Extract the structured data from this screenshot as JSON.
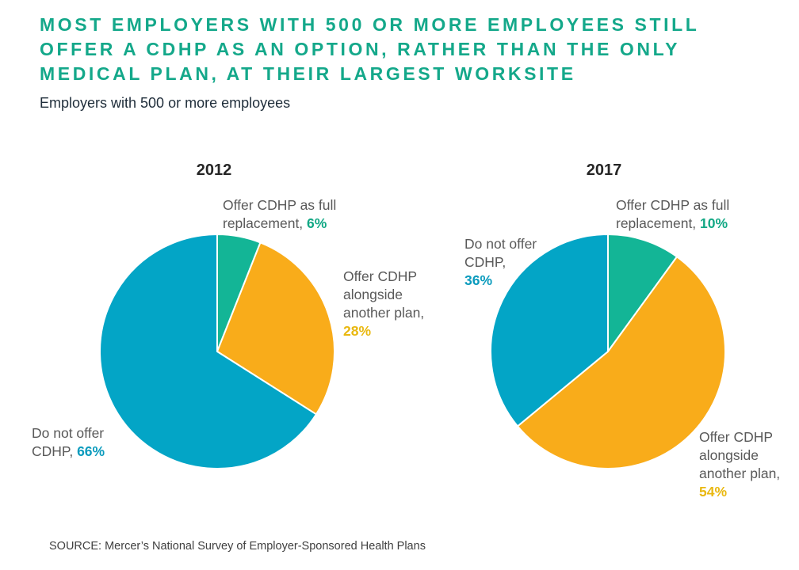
{
  "header": {
    "title_lines": [
      "MOST EMPLOYERS WITH 500 OR MORE EMPLOYEES STILL",
      "OFFER A CDHP AS AN OPTION, RATHER THAN THE ONLY",
      "MEDICAL PLAN, AT THEIR LARGEST WORKSITE"
    ],
    "subtitle": "Employers with 500 or more employees"
  },
  "colors": {
    "full_replacement": "#13b596",
    "alongside": "#f9ac1a",
    "do_not_offer": "#03a5c6",
    "full_replacement_text": "#13a885",
    "alongside_text": "#e9b810",
    "do_not_offer_text": "#0b9bbd"
  },
  "chart_data": [
    {
      "type": "pie",
      "title": "2012",
      "slices": [
        {
          "key": "full_replacement",
          "label_lines": [
            "Offer CDHP as full",
            "replacement,"
          ],
          "value": 6,
          "value_label": "6%"
        },
        {
          "key": "alongside",
          "label_lines": [
            "Offer CDHP",
            "alongside",
            "another plan,"
          ],
          "value": 28,
          "value_label": "28%"
        },
        {
          "key": "do_not_offer",
          "label_lines": [
            "Do not offer",
            "CDHP,"
          ],
          "value": 66,
          "value_label": "66%"
        }
      ]
    },
    {
      "type": "pie",
      "title": "2017",
      "slices": [
        {
          "key": "full_replacement",
          "label_lines": [
            "Offer CDHP as full",
            "replacement,"
          ],
          "value": 10,
          "value_label": "10%"
        },
        {
          "key": "alongside",
          "label_lines": [
            "Offer CDHP",
            "alongside",
            "another plan,"
          ],
          "value": 54,
          "value_label": "54%"
        },
        {
          "key": "do_not_offer",
          "label_lines": [
            "Do not offer",
            "CDHP,"
          ],
          "value": 36,
          "value_label": "36%"
        }
      ]
    }
  ],
  "footer": {
    "source": "SOURCE:  Mercer’s National Survey of Employer-Sponsored Health Plans"
  }
}
